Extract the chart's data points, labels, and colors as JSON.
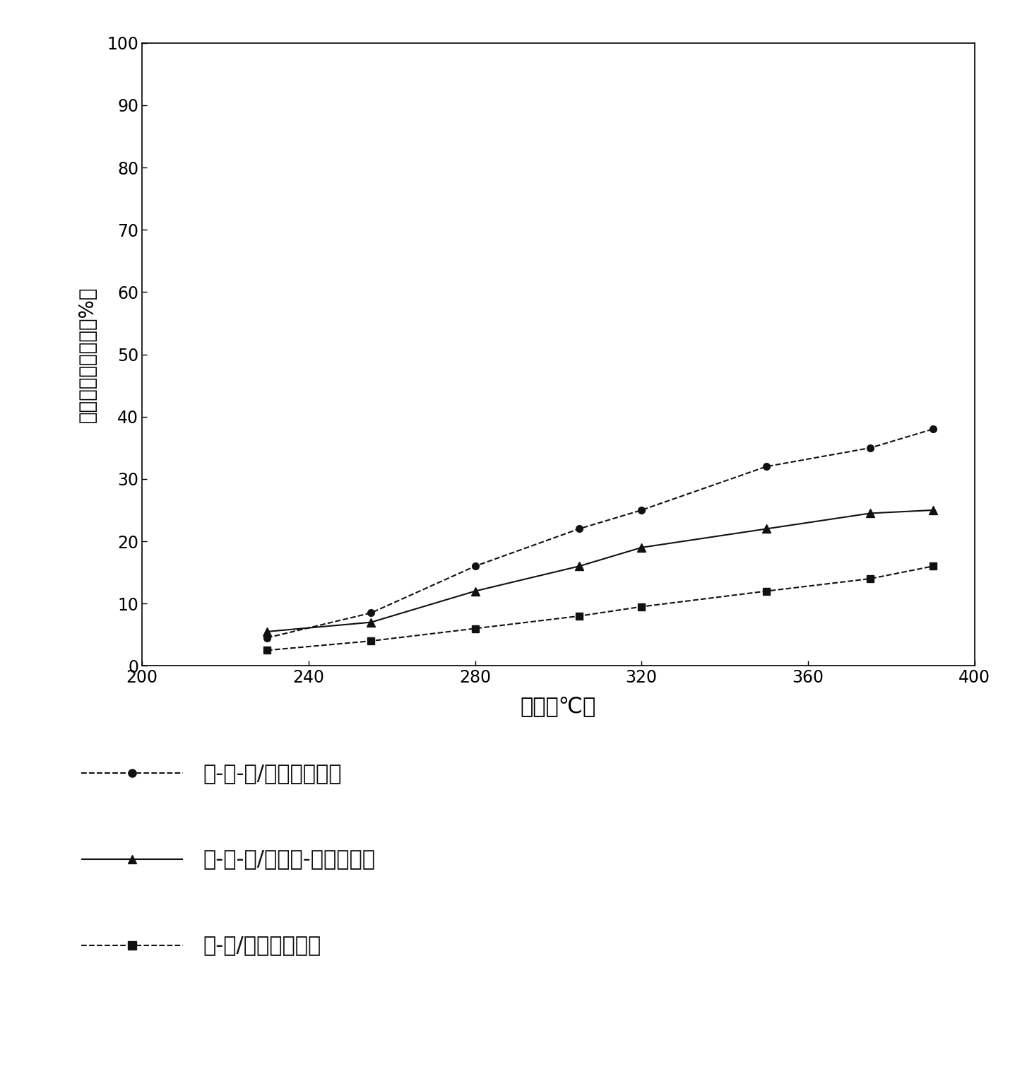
{
  "series1": {
    "label": "銀-钒-鄙/氧化馒催化剂",
    "x": [
      230,
      255,
      280,
      305,
      320,
      350,
      375,
      390
    ],
    "y": [
      4.5,
      8.5,
      16,
      22,
      25,
      32,
      35,
      38
    ],
    "marker": "o",
    "linestyle": "--",
    "color": "#111111"
  },
  "series2": {
    "label": "銀-钒-鄙/氧化馒-硫酸催化剂",
    "x": [
      230,
      255,
      280,
      305,
      320,
      350,
      375,
      390
    ],
    "y": [
      5.5,
      7.0,
      12.0,
      16.0,
      19.0,
      22.0,
      24.5,
      25.0
    ],
    "marker": "^",
    "linestyle": "-",
    "color": "#111111"
  },
  "series3": {
    "label": "钒-鄙/氧化馒催化剂",
    "x": [
      230,
      255,
      280,
      305,
      320,
      350,
      375,
      390
    ],
    "y": [
      2.5,
      4.0,
      6.0,
      8.0,
      9.5,
      12.0,
      14.0,
      16.0
    ],
    "marker": "s",
    "linestyle": "--",
    "color": "#111111"
  },
  "xlabel": "温度（℃）",
  "ylabel": "一氧化碳的转化率（%）",
  "xlim": [
    200,
    400
  ],
  "ylim": [
    0,
    100
  ],
  "xticks": [
    200,
    240,
    280,
    320,
    360,
    400
  ],
  "yticks": [
    0,
    10,
    20,
    30,
    40,
    50,
    60,
    70,
    80,
    90,
    100
  ],
  "background_color": "#ffffff"
}
